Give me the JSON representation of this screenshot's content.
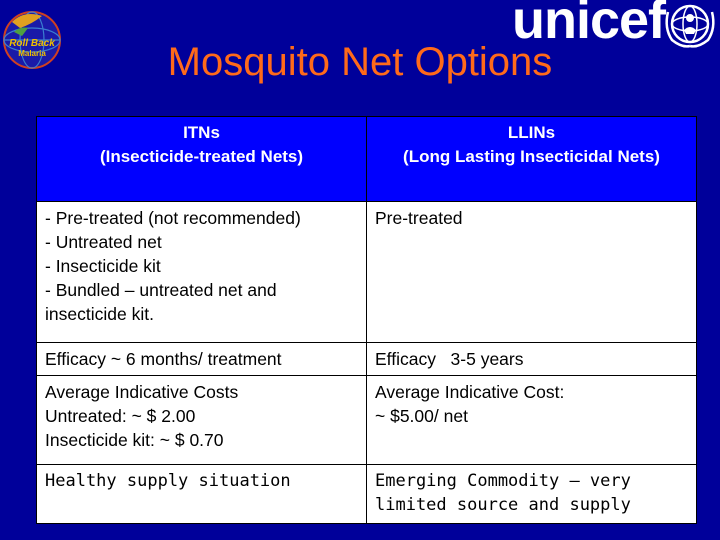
{
  "logos": {
    "rbm_line1": "Roll Back",
    "rbm_line2": "Malaria",
    "unicef": "unicef"
  },
  "title": "Mosquito Net Options",
  "table": {
    "headers": [
      {
        "line1": "ITNs",
        "line2": "(Insecticide-treated Nets)"
      },
      {
        "line1": "LLINs",
        "line2": "(Long Lasting Insecticidal Nets)"
      }
    ],
    "rows": [
      {
        "left": [
          "- Pre-treated (not recommended)",
          "- Untreated net",
          "- Insecticide kit",
          "- Bundled – untreated net and",
          "insecticide kit."
        ],
        "right": [
          "Pre-treated"
        ]
      },
      {
        "left": [
          "Efficacy ~ 6 months/ treatment"
        ],
        "right": [
          "Efficacy   3-5 years"
        ]
      },
      {
        "left": [
          "Average Indicative Costs",
          "Untreated: ~ $ 2.00",
          "Insecticide kit: ~ $ 0.70"
        ],
        "right": [
          "Average Indicative Cost:",
          "~ $5.00/ net"
        ]
      },
      {
        "left": [
          "Healthy supply situation"
        ],
        "right": [
          "Emerging Commodity – very",
          "limited source and supply"
        ]
      }
    ]
  },
  "colors": {
    "background": "#00009a",
    "title": "#ff6a1a",
    "header_fill": "#0000ff",
    "cell_fill": "#ffffff"
  },
  "icons": [
    "roll-back-malaria-logo",
    "unicef-emblem-icon"
  ]
}
